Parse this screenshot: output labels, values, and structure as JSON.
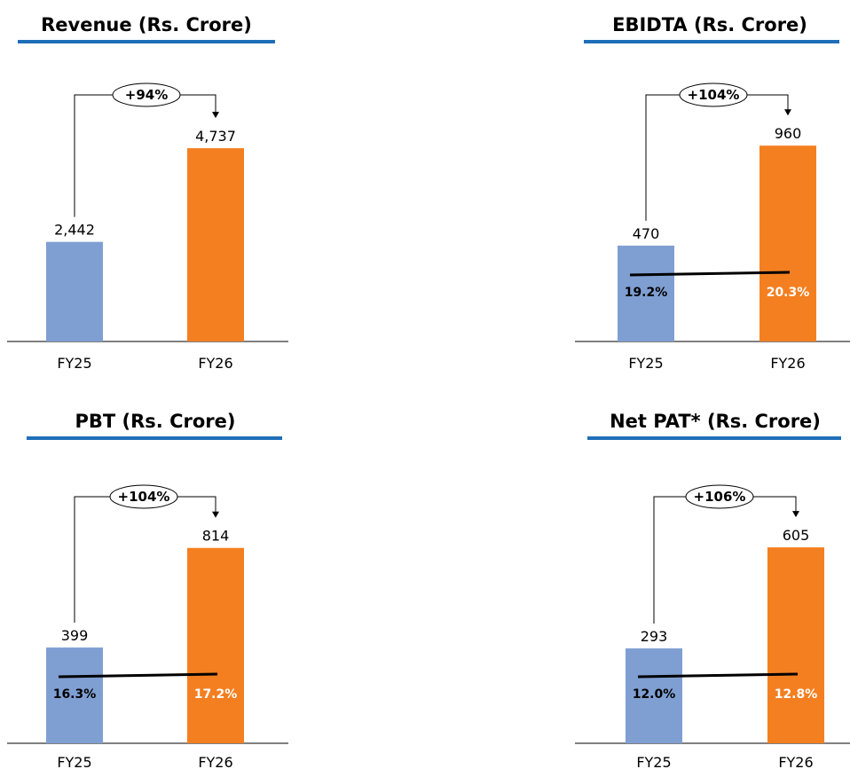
{
  "colors": {
    "fy25_bar": "#7F9FD3",
    "fy26_bar": "#F47F20",
    "title_underline": "#1F6FB8",
    "margin_line": "#000000"
  },
  "chart_data": [
    {
      "type": "bar",
      "title": "Revenue (Rs. Crore)",
      "categories": [
        "FY25",
        "FY26"
      ],
      "values": [
        2442,
        4737
      ],
      "value_labels": [
        "2,442",
        "4,737"
      ],
      "growth_label": "+94%",
      "margins": null,
      "ylim": [
        0,
        5000
      ]
    },
    {
      "type": "bar",
      "title": "EBIDTA (Rs. Crore)",
      "categories": [
        "FY25",
        "FY26"
      ],
      "values": [
        470,
        960
      ],
      "value_labels": [
        "470",
        "960"
      ],
      "growth_label": "+104%",
      "margins": {
        "values": [
          19.2,
          20.3
        ],
        "labels": [
          "19.2%",
          "20.3%"
        ]
      },
      "ylim": [
        0,
        1000
      ]
    },
    {
      "type": "bar",
      "title": "PBT (Rs. Crore)",
      "categories": [
        "FY25",
        "FY26"
      ],
      "values": [
        399,
        814
      ],
      "value_labels": [
        "399",
        "814"
      ],
      "growth_label": "+104%",
      "margins": {
        "values": [
          16.3,
          17.2
        ],
        "labels": [
          "16.3%",
          "17.2%"
        ]
      },
      "ylim": [
        0,
        850
      ]
    },
    {
      "type": "bar",
      "title": "Net PAT* (Rs. Crore)",
      "categories": [
        "FY25",
        "FY26"
      ],
      "values": [
        293,
        605
      ],
      "value_labels": [
        "293",
        "605"
      ],
      "growth_label": "+106%",
      "margins": {
        "values": [
          12.0,
          12.8
        ],
        "labels": [
          "12.0%",
          "12.8%"
        ]
      },
      "ylim": [
        0,
        630
      ]
    }
  ]
}
